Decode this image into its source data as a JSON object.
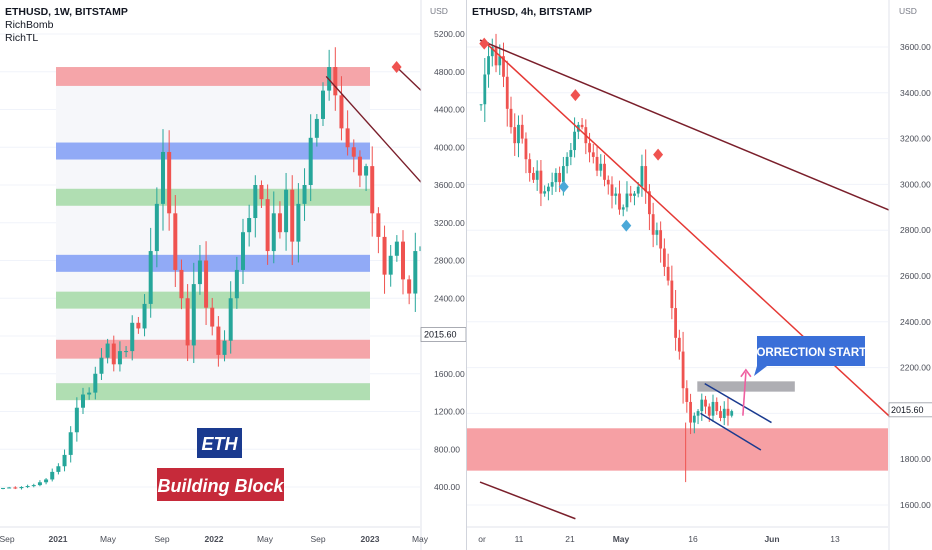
{
  "chart_data": [
    {
      "type": "candlestick",
      "symbol_title": "ETHUSD, 1W, BITSTAMP",
      "indicators": [
        "RichBomb",
        "RichTL"
      ],
      "axis_unit": "USD",
      "y_ticks": [
        "5200.00",
        "4800.00",
        "4400.00",
        "4000.00",
        "3600.00",
        "3200.00",
        "2800.00",
        "2400.00",
        "2000.00",
        "1600.00",
        "1200.00",
        "800.00",
        "400.00"
      ],
      "ylim": [
        0,
        5400
      ],
      "x_ticks": [
        "Sep",
        "2021",
        "May",
        "Sep",
        "2022",
        "May",
        "Sep",
        "2023",
        "May"
      ],
      "last_price": "2015.60",
      "colors": {
        "up": "#26a69a",
        "down": "#ef5350",
        "zone_red": "#f5969a",
        "zone_green": "#a3d9a5",
        "zone_blue": "#7f9cf5",
        "trendline": "#7a1f2b",
        "badge_bg": "#c62a3a",
        "badge_fg": "#1a3a8f"
      },
      "zones": [
        {
          "color": "red",
          "low": 4650,
          "high": 4850
        },
        {
          "color": "blue",
          "low": 3870,
          "high": 4050
        },
        {
          "color": "green",
          "low": 3380,
          "high": 3560
        },
        {
          "color": "blue",
          "low": 2680,
          "high": 2860
        },
        {
          "color": "green",
          "low": 2290,
          "high": 2470
        },
        {
          "color": "red",
          "low": 1760,
          "high": 1960
        },
        {
          "color": "green",
          "low": 1320,
          "high": 1500
        }
      ],
      "trendlines": [
        {
          "from": [
            2021.65,
            4750
          ],
          "to": [
            2022.62,
            1080
          ]
        },
        {
          "from": [
            2021.87,
            4850
          ],
          "to": [
            2022.94,
            1370
          ]
        }
      ],
      "weekly_closes": [
        390,
        395,
        388,
        400,
        410,
        420,
        450,
        480,
        560,
        620,
        740,
        980,
        1240,
        1380,
        1400,
        1600,
        1770,
        1920,
        1700,
        1840,
        1840,
        2140,
        2080,
        2340,
        2900,
        3400,
        3950,
        3300,
        2700,
        2400,
        1900,
        2550,
        2800,
        2300,
        2100,
        1800,
        1950,
        2400,
        2700,
        3100,
        3250,
        3600,
        3450,
        2900,
        3300,
        3100,
        3550,
        3000,
        3400,
        3600,
        4100,
        4300,
        4600,
        4850,
        4550,
        4200,
        4000,
        3900,
        3700,
        3800,
        3300,
        3050,
        2650,
        2850,
        3000,
        2600,
        2450,
        2900,
        2950,
        3050,
        3450,
        3250,
        3000,
        2800,
        2700,
        2350,
        2000,
        1950
      ]
    },
    {
      "type": "candlestick",
      "symbol_title": "ETHUSD, 4h, BITSTAMP",
      "axis_unit": "USD",
      "y_ticks": [
        "3600.00",
        "3400.00",
        "3200.00",
        "3000.00",
        "2800.00",
        "2600.00",
        "2400.00",
        "2200.00",
        "2000.00",
        "1800.00",
        "1600.00"
      ],
      "ylim": [
        1560,
        3800
      ],
      "x_ticks": [
        "or",
        "11",
        "21",
        "May",
        "16",
        "Jun",
        "13"
      ],
      "last_price": "2015.60",
      "annotation": "CORRECTION STARTS",
      "colors": {
        "up": "#26a69a",
        "down": "#ef5350",
        "zone_red": "#f5969a",
        "zone_grey": "#a0a0a6",
        "trend_red": "#e53935",
        "trend_dark": "#7a1f2b",
        "wedge": "#1a3a8f",
        "callout_bg": "#3a6fd8",
        "arrow": "#ef5fa0"
      },
      "demand_zone": {
        "low": 1750,
        "high": 1935
      },
      "resistance_box": {
        "low": 2095,
        "high": 2140
      },
      "trendlines": [
        {
          "color": "dark",
          "from": [
            0,
            3630
          ],
          "to": [
            39,
            2880
          ]
        },
        {
          "color": "red",
          "from": [
            0.5,
            3620
          ],
          "to": [
            38.8,
            1980
          ]
        },
        {
          "color": "dark",
          "from": [
            0,
            1700
          ],
          "to": [
            9,
            1540
          ]
        }
      ],
      "wedge_lines": [
        {
          "from": [
            21.2,
            2130
          ],
          "to": [
            27.5,
            1960
          ]
        },
        {
          "from": [
            20.8,
            2000
          ],
          "to": [
            26.5,
            1840
          ]
        }
      ],
      "markers": [
        {
          "shape": "diamond",
          "color": "#ef5350",
          "x": 0.4,
          "y": 3615
        },
        {
          "shape": "diamond",
          "color": "#ef5350",
          "x": 9.0,
          "y": 3390
        },
        {
          "shape": "diamond",
          "color": "#ef5350",
          "x": 16.8,
          "y": 3130
        },
        {
          "shape": "diamond",
          "color": "#4aa8d8",
          "x": 7.9,
          "y": 2990
        },
        {
          "shape": "diamond",
          "color": "#4aa8d8",
          "x": 13.8,
          "y": 2820
        }
      ],
      "closes": [
        3350,
        3480,
        3560,
        3600,
        3520,
        3560,
        3470,
        3330,
        3250,
        3180,
        3260,
        3200,
        3110,
        3050,
        3020,
        3060,
        2960,
        2970,
        2990,
        3010,
        3050,
        3010,
        3080,
        3120,
        3150,
        3230,
        3260,
        3250,
        3180,
        3140,
        3120,
        3060,
        3090,
        3020,
        3000,
        2950,
        2960,
        2890,
        2900,
        2960,
        2950,
        2960,
        2990,
        3080,
        2970,
        2870,
        2780,
        2800,
        2720,
        2640,
        2580,
        2460,
        2330,
        2270,
        2110,
        2050,
        1960,
        1990,
        2010,
        2060,
        2030,
        1990,
        2050,
        2010,
        1980,
        2020,
        1990,
        2010
      ]
    }
  ],
  "left_pane": {
    "title": "ETHUSD, 1W, BITSTAMP",
    "legend": [
      "RichBomb",
      "RichTL"
    ],
    "badge_eth": "ETH",
    "badge_block": "Building Block"
  },
  "right_pane": {
    "title": "ETHUSD, 4h, BITSTAMP",
    "callout": "CORRECTION STARTS"
  }
}
